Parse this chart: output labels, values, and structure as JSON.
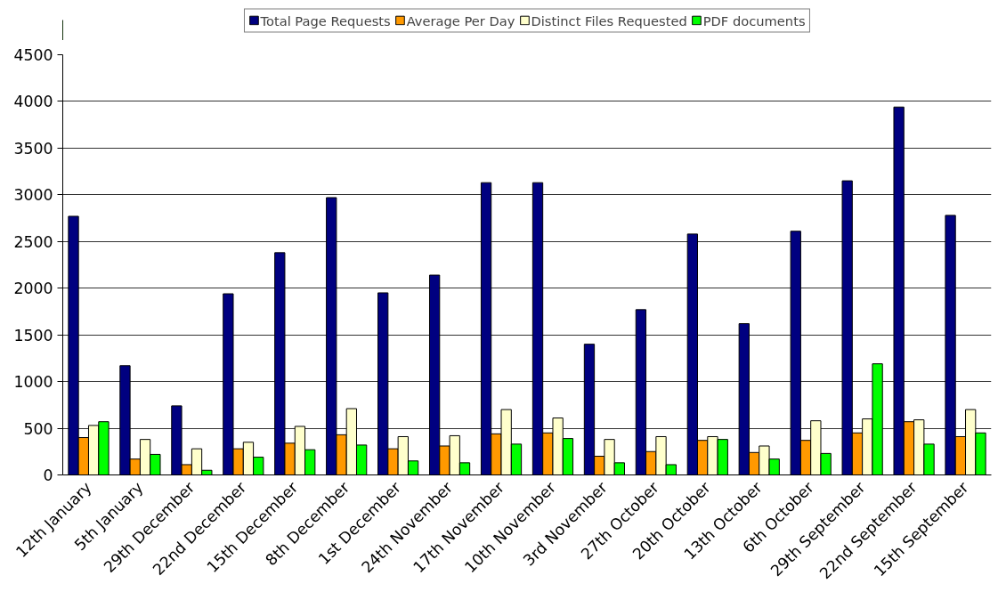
{
  "chart_data": {
    "type": "bar",
    "categories": [
      "12th January",
      "5th January",
      "29th December",
      "22nd December",
      "15th December",
      "8th December",
      "1st December",
      "24th November",
      "17th November",
      "10th November",
      "3rd November",
      "27th October",
      "20th October",
      "13th October",
      "6th October",
      "29th September",
      "22nd September",
      "15th September"
    ],
    "series": [
      {
        "name": "Total Page Requests",
        "color": "#000080",
        "values": [
          2770,
          1170,
          740,
          1940,
          2380,
          2970,
          1950,
          2140,
          3130,
          3130,
          1400,
          1770,
          2580,
          1620,
          2610,
          3150,
          3940,
          2780
        ]
      },
      {
        "name": "Average Per Day",
        "color": "#ff9900",
        "values": [
          400,
          170,
          110,
          280,
          340,
          430,
          280,
          310,
          440,
          450,
          200,
          250,
          370,
          240,
          370,
          450,
          570,
          410
        ]
      },
      {
        "name": "Distinct Files Requested",
        "color": "#ffffcc",
        "values": [
          530,
          380,
          280,
          350,
          520,
          710,
          410,
          420,
          700,
          610,
          380,
          410,
          410,
          310,
          580,
          600,
          590,
          700
        ]
      },
      {
        "name": "PDF documents",
        "color": "#00ff00",
        "values": [
          570,
          220,
          50,
          190,
          270,
          320,
          150,
          130,
          330,
          390,
          130,
          110,
          380,
          170,
          230,
          1190,
          330,
          450
        ]
      }
    ],
    "ylim": [
      0,
      4500
    ],
    "yticks": [
      0,
      500,
      1000,
      1500,
      2000,
      2500,
      3000,
      3500,
      4000,
      4500
    ],
    "grid": "y",
    "legend": "top"
  }
}
